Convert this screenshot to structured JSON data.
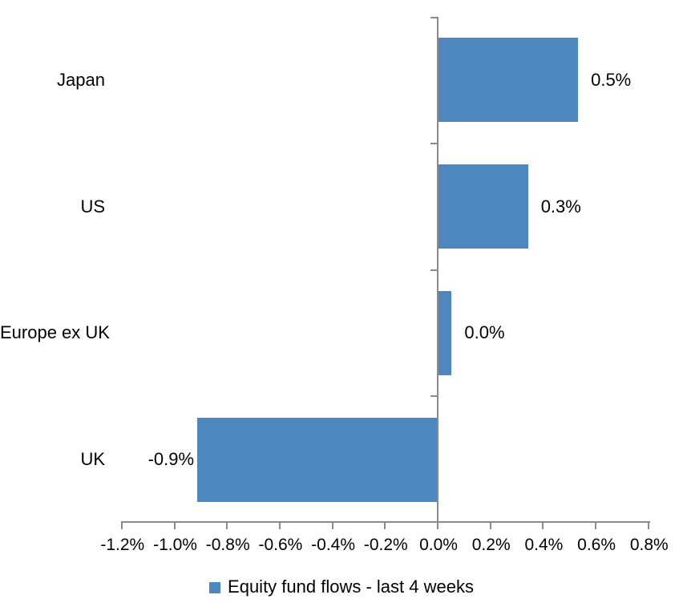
{
  "chart_data": {
    "type": "bar",
    "orientation": "horizontal",
    "title": "",
    "xlabel": "",
    "ylabel": "",
    "categories": [
      "Japan",
      "US",
      "Europe ex UK",
      "UK"
    ],
    "values": [
      0.5,
      0.3,
      0.0,
      -0.9
    ],
    "values_precise": [
      0.53,
      0.34,
      0.05,
      -0.91
    ],
    "data_labels": [
      "0.5%",
      "0.3%",
      "0.0%",
      "-0.9%"
    ],
    "unit": "%",
    "xlim": [
      -1.2,
      0.8
    ],
    "x_tick_step": 0.2,
    "x_tick_labels": [
      "-1.2%",
      "-1.0%",
      "-0.8%",
      "-0.6%",
      "-0.4%",
      "-0.2%",
      "0.0%",
      "0.2%",
      "0.4%",
      "0.6%",
      "0.8%"
    ],
    "grid": false,
    "legend": {
      "position": "bottom",
      "entries": [
        {
          "label": "Equity fund flows - last 4 weeks",
          "color": "#4E87BE"
        }
      ]
    },
    "colors": {
      "bar": "#4E87BE",
      "axis": "#8A8A8A",
      "text": "#000000",
      "background": "#FFFFFF"
    }
  }
}
